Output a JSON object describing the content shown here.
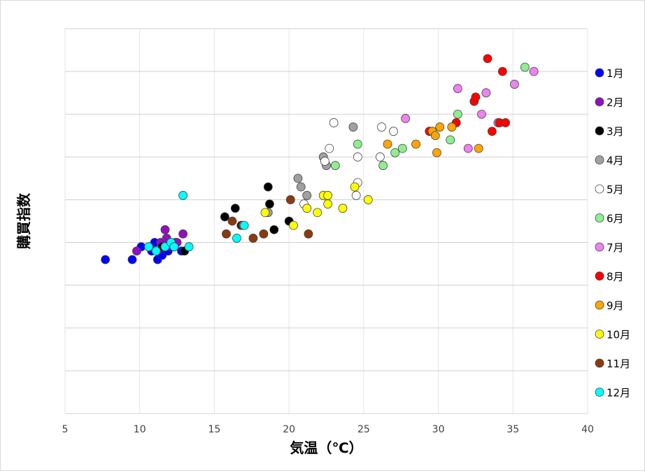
{
  "chart_data": {
    "type": "scatter",
    "title": "",
    "xlabel": "気温（℃）",
    "ylabel": "購買指数",
    "xlim": [
      5,
      40
    ],
    "xticks": [
      5,
      10,
      15,
      20,
      25,
      30,
      35,
      40
    ],
    "x_tick_labels": [
      "5",
      "10",
      "15",
      "20",
      "25",
      "30",
      "35",
      "40"
    ],
    "ylim": [
      0,
      9
    ],
    "y_gridlines": [
      1,
      2,
      3,
      4,
      5,
      6,
      7,
      8,
      9
    ],
    "y_tick_labels_shown": false,
    "grid": true,
    "legend_position": "right",
    "series": [
      {
        "name": "1月",
        "color": "#0000ff",
        "points": [
          [
            7.7,
            3.6
          ],
          [
            9.5,
            3.6
          ],
          [
            10.1,
            3.9
          ],
          [
            10.8,
            3.8
          ],
          [
            11.0,
            4.0
          ],
          [
            11.2,
            3.6
          ],
          [
            11.5,
            3.7
          ],
          [
            11.9,
            3.8
          ],
          [
            12.1,
            3.9
          ],
          [
            12.4,
            4.0
          ],
          [
            12.8,
            3.8
          ]
        ]
      },
      {
        "name": "2月",
        "color": "#9010c0",
        "points": [
          [
            9.8,
            3.8
          ],
          [
            11.4,
            4.0
          ],
          [
            11.7,
            4.3
          ],
          [
            11.8,
            4.1
          ],
          [
            12.3,
            3.9
          ],
          [
            12.5,
            4.0
          ],
          [
            12.9,
            4.2
          ]
        ]
      },
      {
        "name": "3月",
        "color": "#000000",
        "points": [
          [
            11.5,
            3.9
          ],
          [
            13.0,
            3.8
          ],
          [
            15.7,
            4.6
          ],
          [
            16.4,
            4.8
          ],
          [
            16.8,
            4.4
          ],
          [
            18.6,
            5.3
          ],
          [
            18.7,
            4.9
          ],
          [
            19.0,
            4.3
          ],
          [
            20.0,
            4.5
          ]
        ]
      },
      {
        "name": "4月",
        "color": "#a0a0a0",
        "points": [
          [
            18.6,
            4.7
          ],
          [
            20.6,
            5.5
          ],
          [
            20.8,
            5.3
          ],
          [
            21.2,
            5.1
          ],
          [
            22.3,
            6.0
          ],
          [
            22.5,
            5.8
          ],
          [
            24.3,
            6.7
          ]
        ]
      },
      {
        "name": "5月",
        "color": "#ffffff",
        "points": [
          [
            21.0,
            4.9
          ],
          [
            22.4,
            5.9
          ],
          [
            22.7,
            6.2
          ],
          [
            23.0,
            6.8
          ],
          [
            24.5,
            5.1
          ],
          [
            24.6,
            5.4
          ],
          [
            24.6,
            6.0
          ],
          [
            26.1,
            6.0
          ],
          [
            26.2,
            6.7
          ],
          [
            27.0,
            6.6
          ]
        ]
      },
      {
        "name": "6月",
        "color": "#90ee90",
        "points": [
          [
            23.1,
            5.8
          ],
          [
            24.6,
            6.3
          ],
          [
            26.3,
            5.8
          ],
          [
            27.1,
            6.1
          ],
          [
            27.6,
            6.2
          ],
          [
            30.8,
            6.4
          ],
          [
            31.3,
            7.0
          ],
          [
            35.8,
            8.1
          ]
        ]
      },
      {
        "name": "7月",
        "color": "#ee82ee",
        "points": [
          [
            27.8,
            6.9
          ],
          [
            31.3,
            7.6
          ],
          [
            32.0,
            6.2
          ],
          [
            32.9,
            7.0
          ],
          [
            33.2,
            7.5
          ],
          [
            34.0,
            6.8
          ],
          [
            35.1,
            7.7
          ],
          [
            36.4,
            8.0
          ]
        ]
      },
      {
        "name": "8月",
        "color": "#ff0000",
        "points": [
          [
            29.4,
            6.6
          ],
          [
            31.2,
            6.8
          ],
          [
            32.4,
            7.3
          ],
          [
            32.5,
            7.4
          ],
          [
            33.3,
            8.3
          ],
          [
            33.6,
            6.6
          ],
          [
            34.1,
            6.8
          ],
          [
            34.3,
            8.0
          ],
          [
            34.5,
            6.8
          ]
        ]
      },
      {
        "name": "9月",
        "color": "#ffa500",
        "points": [
          [
            26.6,
            6.3
          ],
          [
            28.5,
            6.3
          ],
          [
            29.6,
            6.6
          ],
          [
            29.8,
            6.5
          ],
          [
            29.9,
            6.1
          ],
          [
            30.1,
            6.7
          ],
          [
            30.9,
            6.7
          ],
          [
            32.7,
            6.2
          ]
        ]
      },
      {
        "name": "10月",
        "color": "#ffff00",
        "points": [
          [
            18.4,
            4.7
          ],
          [
            20.3,
            4.4
          ],
          [
            21.2,
            4.8
          ],
          [
            21.9,
            4.7
          ],
          [
            22.3,
            5.1
          ],
          [
            22.6,
            5.1
          ],
          [
            22.6,
            4.9
          ],
          [
            23.6,
            4.8
          ],
          [
            24.4,
            5.3
          ],
          [
            25.3,
            5.0
          ]
        ]
      },
      {
        "name": "11月",
        "color": "#8b3a0f",
        "points": [
          [
            15.8,
            4.2
          ],
          [
            16.2,
            4.5
          ],
          [
            16.9,
            4.4
          ],
          [
            17.6,
            4.1
          ],
          [
            18.3,
            4.2
          ],
          [
            20.1,
            5.0
          ],
          [
            21.3,
            4.2
          ]
        ]
      },
      {
        "name": "12月",
        "color": "#00ffff",
        "points": [
          [
            10.6,
            3.9
          ],
          [
            11.1,
            3.8
          ],
          [
            11.7,
            3.9
          ],
          [
            12.1,
            4.0
          ],
          [
            12.3,
            3.9
          ],
          [
            12.9,
            5.1
          ],
          [
            13.3,
            3.9
          ],
          [
            16.5,
            4.1
          ],
          [
            17.0,
            4.4
          ]
        ]
      }
    ]
  }
}
